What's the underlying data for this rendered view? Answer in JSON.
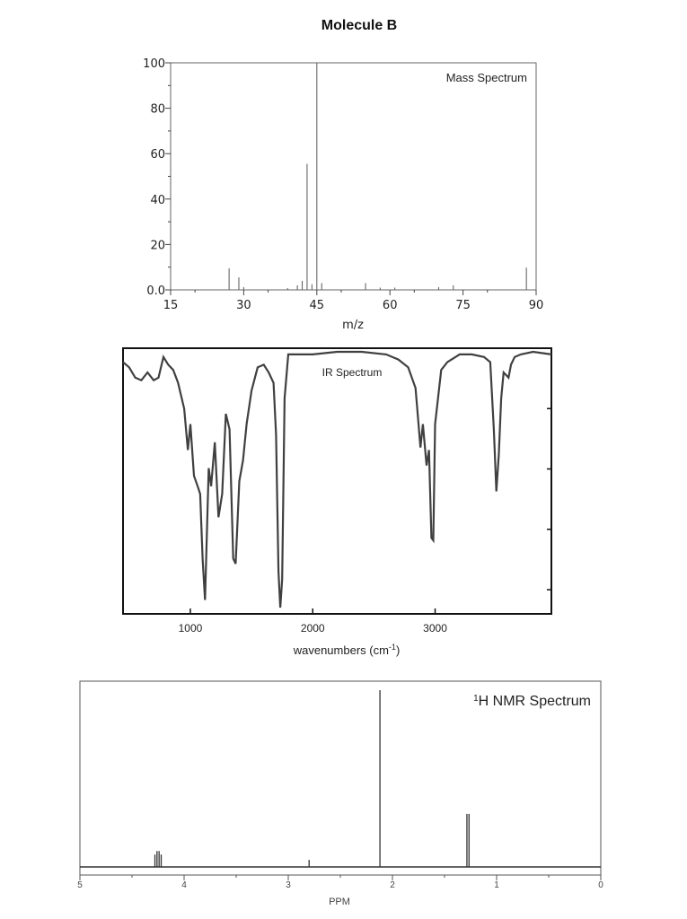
{
  "title": "Molecule B",
  "chart_data": [
    {
      "type": "bar",
      "title": "Mass Spectrum",
      "xlabel": "m/z",
      "ylabel": "",
      "xlim": [
        15,
        90
      ],
      "ylim": [
        0,
        100
      ],
      "xticks": [
        "15",
        "30",
        "45",
        "60",
        "75",
        "90"
      ],
      "yticks": [
        "0.0",
        "20",
        "40",
        "60",
        "80",
        "100"
      ],
      "peaks": [
        {
          "mz": 27,
          "intensity": 9.5
        },
        {
          "mz": 29,
          "intensity": 5.5
        },
        {
          "mz": 30,
          "intensity": 1.2
        },
        {
          "mz": 39,
          "intensity": 0.8
        },
        {
          "mz": 41,
          "intensity": 2.0
        },
        {
          "mz": 42,
          "intensity": 4.0
        },
        {
          "mz": 43,
          "intensity": 55.5
        },
        {
          "mz": 44,
          "intensity": 2.5
        },
        {
          "mz": 45,
          "intensity": 100
        },
        {
          "mz": 46,
          "intensity": 3.0
        },
        {
          "mz": 55,
          "intensity": 3.0
        },
        {
          "mz": 58,
          "intensity": 1.0
        },
        {
          "mz": 61,
          "intensity": 1.0
        },
        {
          "mz": 70,
          "intensity": 1.2
        },
        {
          "mz": 73,
          "intensity": 2.0
        },
        {
          "mz": 88,
          "intensity": 9.8
        }
      ]
    },
    {
      "type": "line",
      "title": "IR Spectrum",
      "xlabel": "wavenumbers (cm",
      "xlabel_sup": "-1",
      "xlabel_end": ")",
      "xlim": [
        450,
        3950
      ],
      "ylim": [
        0,
        100
      ],
      "xticks": [
        "1000",
        "2000",
        "3000"
      ],
      "xtick_values": [
        1000,
        2000,
        3000
      ],
      "x": [
        450,
        500,
        550,
        600,
        650,
        700,
        740,
        780,
        820,
        860,
        900,
        950,
        980,
        1000,
        1030,
        1060,
        1080,
        1100,
        1120,
        1150,
        1170,
        1200,
        1230,
        1260,
        1290,
        1320,
        1350,
        1370,
        1400,
        1430,
        1460,
        1500,
        1550,
        1600,
        1640,
        1680,
        1700,
        1720,
        1735,
        1750,
        1770,
        1800,
        1900,
        2000,
        2200,
        2400,
        2600,
        2700,
        2780,
        2840,
        2880,
        2900,
        2930,
        2950,
        2970,
        2985,
        3000,
        3050,
        3100,
        3200,
        3300,
        3400,
        3450,
        3480,
        3500,
        3520,
        3540,
        3560,
        3600,
        3620,
        3650,
        3700,
        3800,
        3950
      ],
      "y": [
        96,
        94,
        90,
        89,
        92,
        89,
        90,
        98,
        95,
        93,
        88,
        78,
        62,
        72,
        52,
        48,
        45,
        20,
        4,
        55,
        48,
        65,
        36,
        45,
        76,
        70,
        20,
        18,
        50,
        58,
        72,
        85,
        94,
        95,
        92,
        88,
        68,
        15,
        1,
        12,
        82,
        99,
        99,
        99,
        100,
        100,
        99,
        97,
        94,
        86,
        63,
        72,
        56,
        62,
        28,
        27,
        72,
        93,
        96,
        99,
        99,
        98,
        96,
        70,
        46,
        60,
        82,
        92,
        90,
        95,
        98,
        99,
        100,
        99
      ]
    },
    {
      "type": "line",
      "title": "1H NMR Spectrum",
      "title_sup": "1",
      "title_rest": "H NMR Spectrum",
      "xlabel": "PPM",
      "xlim": [
        5,
        0
      ],
      "ylim": [
        0,
        100
      ],
      "xticks": [
        "5",
        "4",
        "3",
        "2",
        "1",
        "0"
      ],
      "xtick_values": [
        5,
        4,
        3,
        2,
        1,
        0
      ],
      "peaks": [
        {
          "ppm": 4.28,
          "height": 7
        },
        {
          "ppm": 4.26,
          "height": 9
        },
        {
          "ppm": 4.24,
          "height": 9
        },
        {
          "ppm": 4.22,
          "height": 7
        },
        {
          "ppm": 2.8,
          "height": 4
        },
        {
          "ppm": 2.12,
          "height": 100
        },
        {
          "ppm": 1.285,
          "height": 30
        },
        {
          "ppm": 1.265,
          "height": 30
        }
      ]
    }
  ]
}
